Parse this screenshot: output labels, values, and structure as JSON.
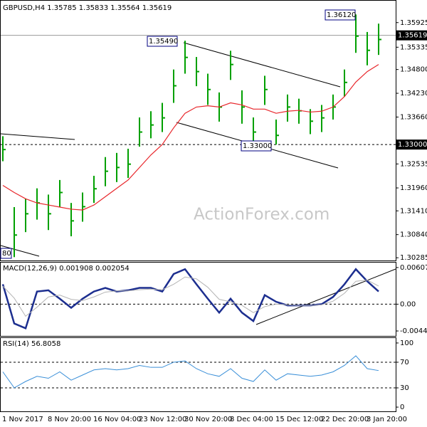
{
  "chart_data": [
    {
      "type": "ohlc",
      "title": "GBPUSD,H4 1.35785 1.35833 1.35564 1.35619",
      "color": "#00a000",
      "categories": [
        "1 Nov 2017",
        null,
        null,
        null,
        "8 Nov 20:00",
        null,
        null,
        null,
        "16 Nov 04:00",
        null,
        null,
        null,
        "23 Nov 12:00",
        null,
        null,
        null,
        "30 Nov 20:00",
        null,
        null,
        null,
        "8 Dec 04:00",
        null,
        null,
        null,
        "15 Dec 12:00",
        null,
        null,
        null,
        "22 Dec 20:00",
        null,
        null,
        null,
        "3 Jan 20:00",
        null
      ],
      "high": [
        1.332,
        1.315,
        1.317,
        1.3195,
        1.318,
        1.3215,
        1.316,
        1.3185,
        1.3225,
        1.327,
        1.328,
        1.329,
        1.3365,
        1.338,
        1.34,
        1.348,
        1.3549,
        1.351,
        1.347,
        1.3425,
        1.3525,
        1.343,
        1.3365,
        1.3465,
        1.336,
        1.342,
        1.341,
        1.3385,
        1.3395,
        1.342,
        1.348,
        1.3612,
        1.357,
        1.359
      ],
      "low": [
        1.326,
        1.303,
        1.309,
        1.312,
        1.3095,
        1.315,
        1.308,
        1.3115,
        1.316,
        1.32,
        1.321,
        1.322,
        1.3295,
        1.3315,
        1.333,
        1.34,
        1.347,
        1.344,
        1.3395,
        1.3355,
        1.3455,
        1.335,
        1.33,
        1.3395,
        1.33,
        1.3355,
        1.335,
        1.3325,
        1.333,
        1.336,
        1.3415,
        1.352,
        1.349,
        1.3515
      ],
      "close": [
        1.3288,
        1.3083,
        1.3134,
        1.316,
        1.3134,
        1.3185,
        1.3117,
        1.3151,
        1.3194,
        1.3236,
        1.3245,
        1.3253,
        1.333,
        1.3347,
        1.3364,
        1.3441,
        1.3509,
        1.3475,
        1.3432,
        1.339,
        1.3492,
        1.339,
        1.333,
        1.3432,
        1.3322,
        1.339,
        1.3381,
        1.3356,
        1.3364,
        1.339,
        1.3449,
        1.356,
        1.3526,
        1.3552
      ],
      "ma": {
        "color": "#e8262b",
        "values": [
          1.3202,
          1.3185,
          1.317,
          1.316,
          1.3155,
          1.315,
          1.3145,
          1.3143,
          1.3155,
          1.3175,
          1.3195,
          1.3215,
          1.3245,
          1.3275,
          1.33,
          1.334,
          1.3375,
          1.339,
          1.3393,
          1.339,
          1.34,
          1.3395,
          1.3385,
          1.3385,
          1.3375,
          1.338,
          1.3382,
          1.3378,
          1.338,
          1.339,
          1.3415,
          1.345,
          1.3475,
          1.3492
        ]
      },
      "ylim": [
        1.3022,
        1.3645
      ],
      "yticks": [
        1.35925,
        1.35335,
        {
          "value": 1.348,
          "label": "1.34800"
        },
        {
          "value": 1.3423,
          "label": "1.34230"
        },
        {
          "value": 1.3366,
          "label": "1.33660"
        },
        1.32535,
        {
          "value": 1.3196,
          "label": "1.31960"
        },
        {
          "value": 1.3141,
          "label": "1.31410"
        },
        {
          "value": 1.3084,
          "label": "1.30840"
        },
        1.30285
      ],
      "last_price": 1.35619,
      "level": {
        "value": 1.33,
        "label": "1.33000"
      },
      "annotations": [
        "1.36120",
        "1.35490",
        "1.33000",
        "80"
      ],
      "watermark": "ActionForex.com"
    },
    {
      "type": "macd",
      "title": "MACD(12,26,9) 0.001908 0.002054",
      "series": [
        {
          "color": "#1c2e8f",
          "values": [
            0.0033,
            -0.0032,
            -0.004,
            0.0021,
            0.0023,
            0.0009,
            -0.0006,
            0.0009,
            0.0021,
            0.0027,
            0.0021,
            0.0023,
            0.0027,
            0.0027,
            0.0021,
            0.005,
            0.0058,
            0.0033,
            0.0009,
            -0.0014,
            0.0009,
            -0.0014,
            -0.0028,
            0.0015,
            0.0004,
            -0.0002,
            -0.0002,
            -0.0002,
            0.0,
            0.0012,
            0.0033,
            0.0058,
            0.0038,
            0.0021
          ]
        },
        {
          "color": "#b4b4b4",
          "values": [
            0.003,
            0.001,
            -0.002,
            -0.0005,
            0.0012,
            0.0015,
            0.0008,
            0.0006,
            0.0012,
            0.002,
            0.0022,
            0.0022,
            0.0024,
            0.0025,
            0.0024,
            0.0033,
            0.0045,
            0.0042,
            0.0028,
            0.0008,
            0.0004,
            -0.0002,
            -0.0014,
            -0.0004,
            0.0,
            -0.0001,
            -0.0002,
            -0.0002,
            -0.0001,
            0.0005,
            0.0018,
            0.0038,
            0.004,
            0.003
          ]
        }
      ],
      "ylim": [
        -0.00526,
        0.00689
      ],
      "yticks": [
        0.006073,
        {
          "value": 0,
          "label": "0.00"
        },
        -0.004441
      ]
    },
    {
      "type": "rsi",
      "title": "RSI(14) 56.8058",
      "color": "#3a8fd8",
      "values": [
        55,
        30,
        40,
        48,
        45,
        55,
        42,
        50,
        58,
        60,
        58,
        60,
        65,
        62,
        62,
        70,
        72,
        60,
        52,
        48,
        60,
        45,
        40,
        58,
        42,
        52,
        50,
        48,
        50,
        55,
        65,
        80,
        60,
        57
      ],
      "ylim": [
        -6.6,
        107.7
      ],
      "yticks": [
        100,
        70,
        30,
        0
      ],
      "dashed_levels": [
        70,
        30
      ]
    }
  ]
}
